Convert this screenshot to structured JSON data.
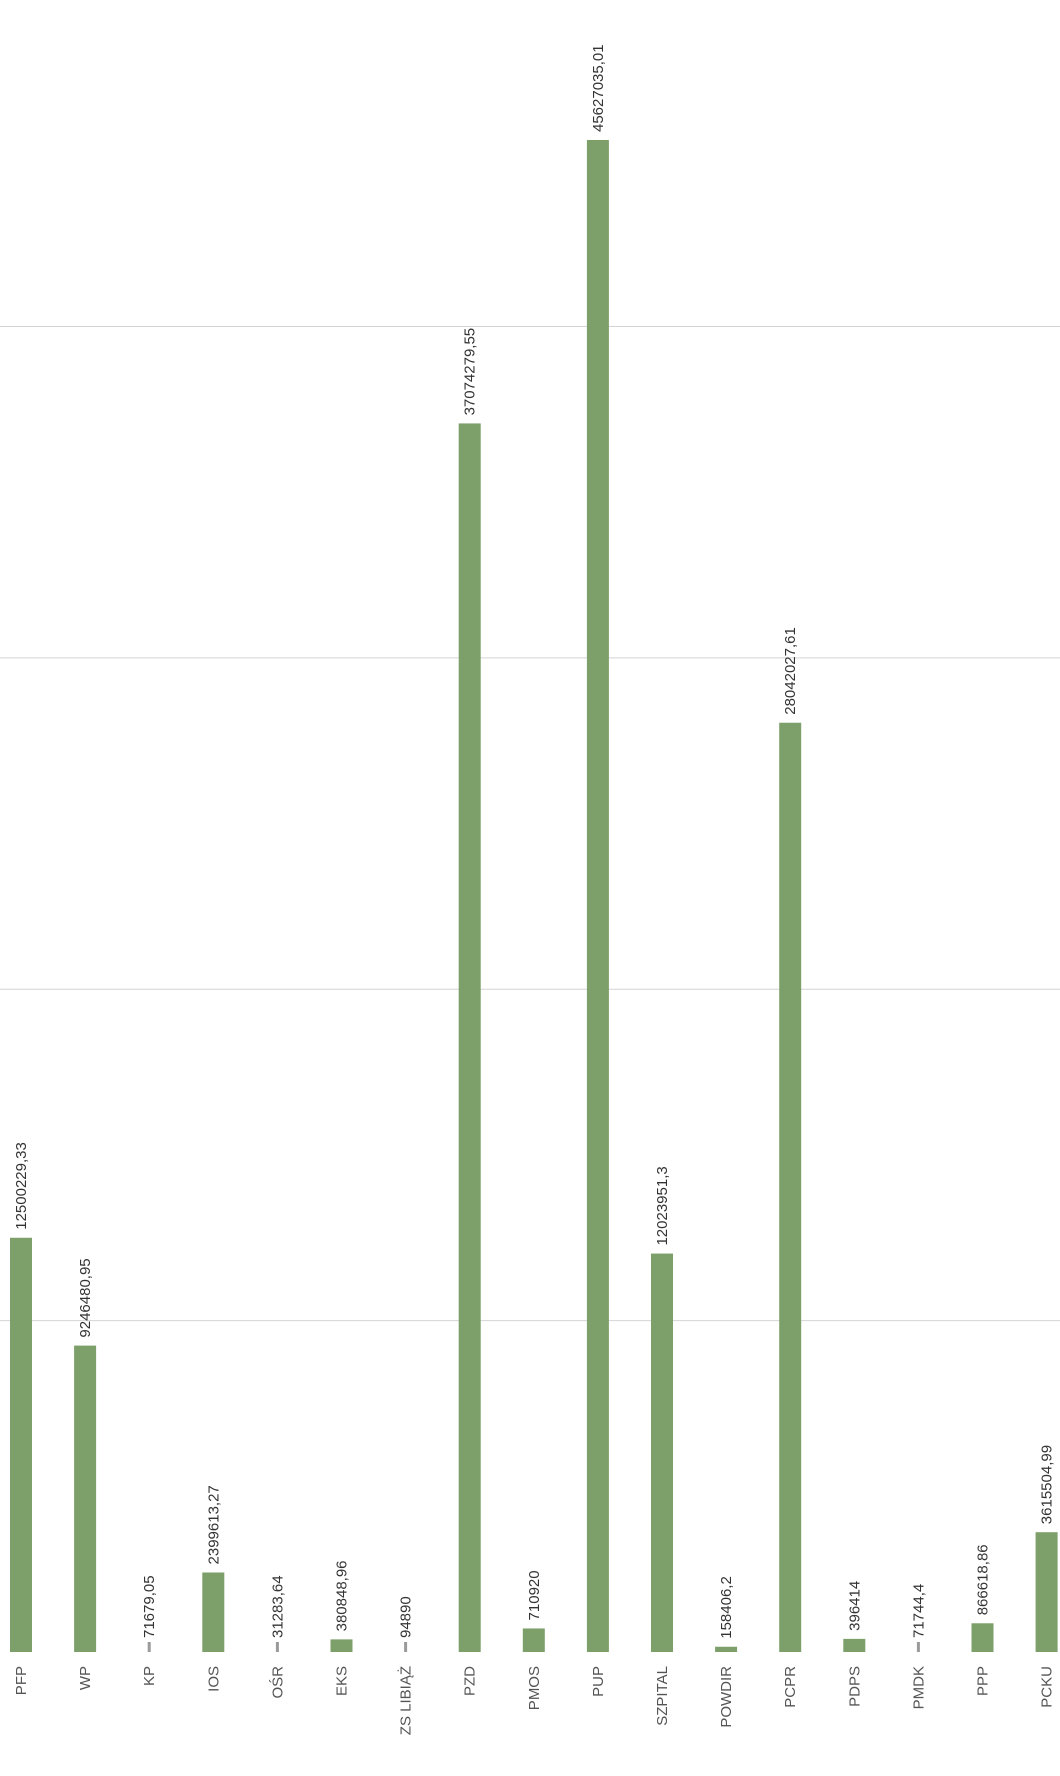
{
  "chart_data": {
    "type": "bar",
    "title": "",
    "xlabel": "",
    "ylabel": "",
    "categories": [
      "PFP",
      "WP",
      "KP",
      "IOS",
      "OŚR",
      "EKS",
      "ZS LIBIĄŻ",
      "PZD",
      "PMOS",
      "PUP",
      "SZPITAL",
      "POWDIR",
      "PCPR",
      "PDPS",
      "PMDK",
      "PPP",
      "PCKU"
    ],
    "values": [
      12500229.33,
      9246480.95,
      71679.05,
      2399613.27,
      31283.64,
      380848.96,
      94890,
      37074279.55,
      710920,
      45627035.01,
      12023951.3,
      158406.2,
      28042027.61,
      396414,
      71744.4,
      866618.86,
      3615504.99
    ],
    "value_labels": [
      "12500229,33",
      "9246480,95",
      "71679,05",
      "2399613,27",
      "31283,64",
      "380848,96",
      "94890",
      "37074279,55",
      "710920",
      "45627035,01",
      "12023951,3",
      "158406,2",
      "28042027,61",
      "396414",
      "71744,4",
      "866618,86",
      "3615504,99"
    ],
    "ylim": [
      0,
      50000000
    ],
    "grid": true,
    "colors": {
      "bar": "#7da06a",
      "grid": "#d4d4d4",
      "text": "#555555"
    }
  }
}
